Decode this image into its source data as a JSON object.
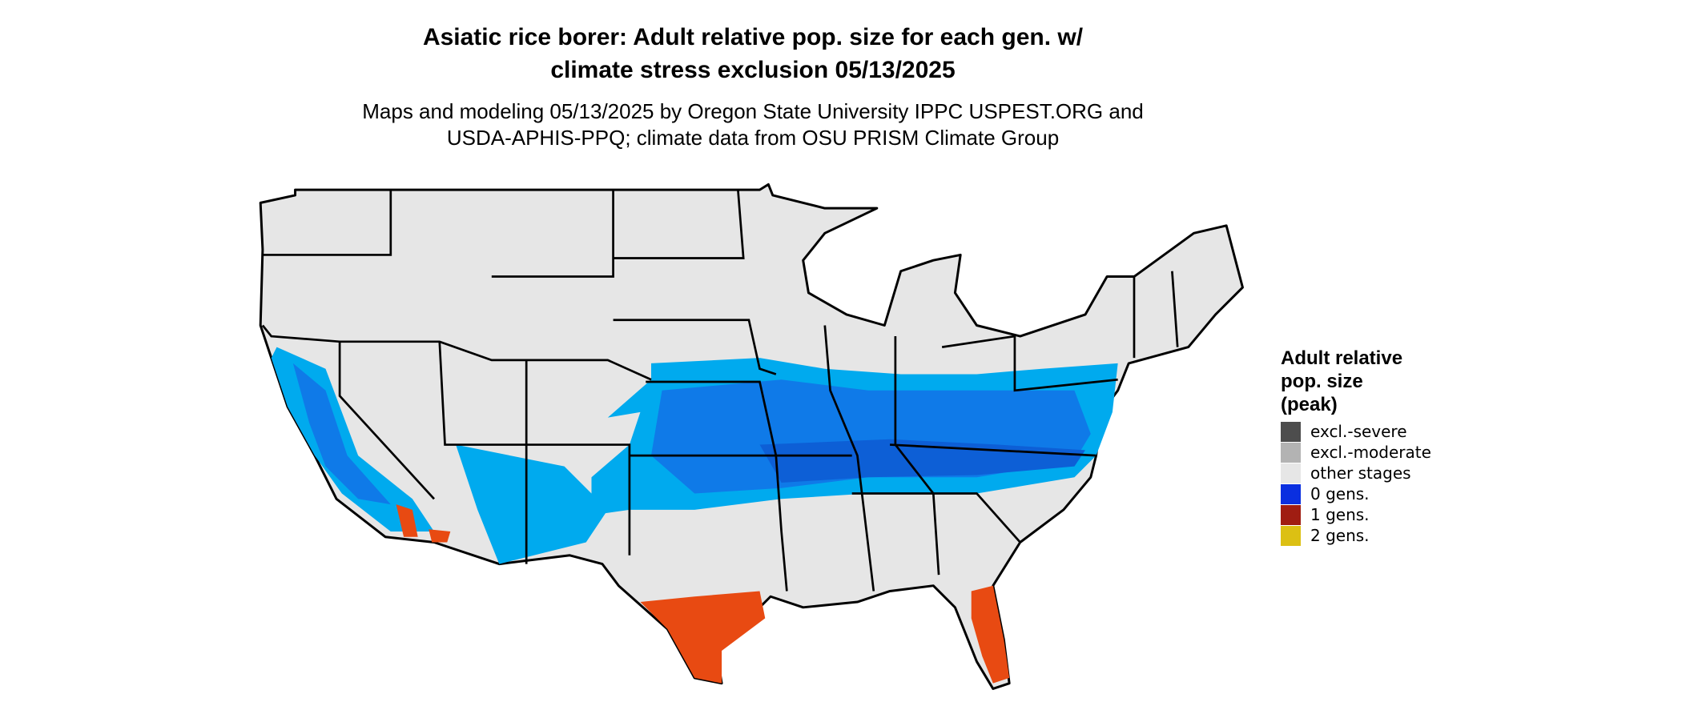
{
  "title": [
    "Asiatic rice borer: Adult relative pop. size for each gen. w/",
    "climate stress exclusion 05/13/2025"
  ],
  "subtitle": [
    "Maps and modeling 05/13/2025 by Oregon State University IPPC USPEST.ORG and",
    "USDA-APHIS-PPQ; climate data from OSU PRISM Climate Group"
  ],
  "legend": {
    "title": [
      "Adult relative",
      "pop. size",
      "(peak)"
    ],
    "items": [
      {
        "label": "excl.-severe",
        "color": "#4d4d4d"
      },
      {
        "label": "excl.-moderate",
        "color": "#b3b3b3"
      },
      {
        "label": "other stages",
        "color": "#e6e6e6"
      },
      {
        "label": "0 gens.",
        "color": "#0a2fe0"
      },
      {
        "label": "1 gens.",
        "color": "#a01d12"
      },
      {
        "label": "2 gens.",
        "color": "#dcc013"
      }
    ]
  }
}
